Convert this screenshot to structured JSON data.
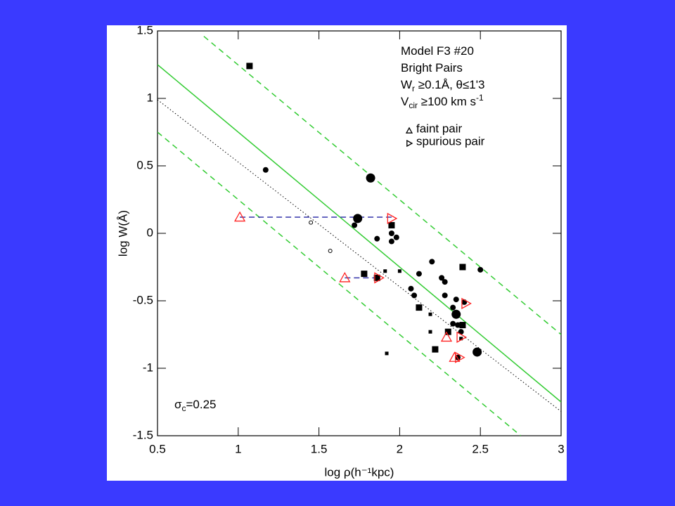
{
  "chart_data": {
    "type": "scatter",
    "xlabel": "log ρ(h⁻¹kpc)",
    "ylabel": "log W(Å)",
    "xlim": [
      0.5,
      3
    ],
    "ylim": [
      -1.5,
      1.5
    ],
    "xticks": [
      0.5,
      1,
      1.5,
      2,
      2.5,
      3
    ],
    "yticks": [
      -1.5,
      -1,
      -0.5,
      0,
      0.5,
      1,
      1.5
    ],
    "annotations": [
      [
        {
          "text": "Model F3 #20"
        }
      ],
      [
        {
          "text": "Bright Pairs"
        }
      ],
      [
        {
          "text": "W"
        },
        {
          "text": "r",
          "sub": true
        },
        {
          "text": " ≥0.1Å, θ≤1'3"
        }
      ],
      [
        {
          "text": "V"
        },
        {
          "text": "cir",
          "sub": true
        },
        {
          "text": " ≥100 km s"
        },
        {
          "text": "-1",
          "sup": true
        }
      ]
    ],
    "sigma_label": [
      {
        "text": "σ"
      },
      {
        "text": "c",
        "sub": true
      },
      {
        "text": "=0.25"
      }
    ],
    "lines": [
      {
        "x": [
          0.5,
          3
        ],
        "values": [
          1.25,
          -1.25
        ],
        "color": "#33cc33",
        "dash": "none",
        "width": 1.5
      },
      {
        "x": [
          0.787,
          3
        ],
        "values": [
          1.46,
          -0.75
        ],
        "color": "#33cc33",
        "dash": "8 6",
        "width": 1.5
      },
      {
        "x": [
          0.5,
          2.75
        ],
        "values": [
          0.75,
          -1.5
        ],
        "color": "#33cc33",
        "dash": "8 6",
        "width": 1.5
      },
      {
        "x": [
          0.5,
          3
        ],
        "values": [
          0.99,
          -1.32
        ],
        "color": "#000000",
        "dash": "1.5 3",
        "width": 1
      },
      {
        "x": [
          1.01,
          1.95
        ],
        "values": [
          0.12,
          0.12
        ],
        "color": "#3333aa",
        "dash": "8 5",
        "width": 1.5
      },
      {
        "x": [
          1.66,
          1.87
        ],
        "values": [
          -0.33,
          -0.33
        ],
        "color": "#3333aa",
        "dash": "8 5",
        "width": 1.5
      }
    ],
    "series": [
      {
        "marker": "square",
        "size": 9,
        "color": "#000000",
        "x": [
          1.07,
          1.78,
          1.86,
          1.95,
          2.12,
          2.3,
          2.22,
          2.39,
          2.39
        ],
        "values": [
          1.24,
          -0.3,
          -0.33,
          0.06,
          -0.55,
          -0.73,
          -0.86,
          -0.25,
          -0.68
        ]
      },
      {
        "marker": "square",
        "size": 5,
        "color": "#000000",
        "x": [
          1.91,
          2.0,
          2.19,
          2.19,
          1.92,
          2.38
        ],
        "values": [
          -0.28,
          -0.28,
          -0.6,
          -0.73,
          -0.89,
          -0.78
        ]
      },
      {
        "marker": "circle",
        "size": 13,
        "color": "#000000",
        "x": [
          1.82,
          1.74,
          2.35,
          2.48
        ],
        "values": [
          0.41,
          0.11,
          -0.6,
          -0.88
        ]
      },
      {
        "marker": "circle",
        "size": 8,
        "color": "#000000",
        "x": [
          1.17,
          1.72,
          1.86,
          1.95,
          1.95,
          1.98,
          2.2,
          2.12,
          2.07,
          2.09,
          2.26,
          2.28,
          2.28,
          2.33,
          2.5,
          2.35,
          2.4,
          2.36,
          2.38,
          2.36,
          2.33
        ],
        "values": [
          0.47,
          0.06,
          -0.04,
          0.0,
          -0.06,
          -0.03,
          -0.21,
          -0.3,
          -0.41,
          -0.46,
          -0.33,
          -0.36,
          -0.46,
          -0.55,
          -0.27,
          -0.49,
          -0.51,
          -0.68,
          -0.73,
          -0.92,
          -0.67
        ]
      },
      {
        "marker": "open-circle",
        "size": 5,
        "color": "#000000",
        "x": [
          1.45,
          1.57
        ],
        "values": [
          0.08,
          -0.13
        ]
      },
      {
        "name": "faint pair",
        "marker": "triangle-up",
        "size": 14,
        "color": "#ff2222",
        "x": [
          1.01,
          1.66,
          2.29,
          2.34
        ],
        "values": [
          0.12,
          -0.33,
          -0.77,
          -0.92
        ]
      },
      {
        "name": "spurious pair",
        "marker": "triangle-right",
        "size": 14,
        "color": "#ff2222",
        "x": [
          1.95,
          1.87,
          2.41,
          2.38,
          2.37
        ],
        "values": [
          0.11,
          -0.33,
          -0.52,
          -0.77,
          -0.92
        ]
      }
    ]
  }
}
